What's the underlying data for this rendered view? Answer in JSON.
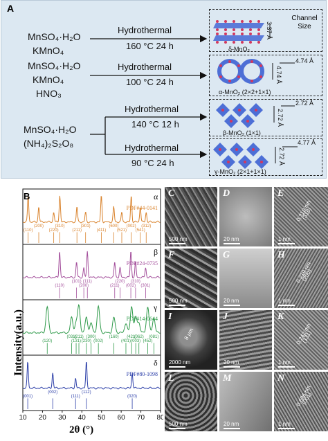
{
  "panelA": {
    "label": "A",
    "routes": [
      {
        "reagents": [
          "MnSO₄·H₂O",
          "KMnO₄"
        ],
        "method": "Hydrothermal",
        "condition": "160 °C 24 h",
        "product": "δ-MnO₂",
        "channel": "3.37 Å"
      },
      {
        "reagents": [
          "MnSO₄·H₂O",
          "KMnO₄",
          "HNO₃"
        ],
        "method": "Hydrothermal",
        "condition": "100 °C 24 h",
        "product": "α-MnO₂ (2×2+1×1)",
        "channel": "4.74 Å",
        "channel2": "4.74 Å"
      },
      {
        "reagents": [
          "MnSO₄·H₂O",
          "(NH₄)₂S₂O₈"
        ],
        "method": "Hydrothermal",
        "condition": "140 °C 12 h",
        "product": "β-MnO₂ (1×1)",
        "channel": "2.72 Å",
        "channel2": "2.72 Å"
      },
      {
        "method": "Hydrothermal",
        "condition": "90 °C 24 h",
        "product": "γ-MnO₂ (2×1+1×1)",
        "channel": "4.77 Å",
        "channel2": "2.72 Å"
      }
    ],
    "channel_size_label": "Channel Size"
  },
  "panelB": {
    "label": "B",
    "ylabel": "Intensity(a.u.)",
    "xlabel": "2θ (°)",
    "xticks": [
      "10",
      "20",
      "30",
      "40",
      "50",
      "60",
      "70",
      "80"
    ],
    "traces": [
      {
        "phase": "α",
        "pdf": "PDF#44-0141",
        "color": "#d9822b",
        "peaks": [
          [
            "(110)",
            12.7
          ],
          [
            "(200)",
            18.1
          ],
          [
            "(220)",
            25.7
          ],
          [
            "(310)",
            28.8
          ],
          [
            "(211)",
            37.5
          ],
          [
            "(301)",
            41.9
          ],
          [
            "(411)",
            49.9
          ],
          [
            "(600)",
            56.2
          ],
          [
            "(521)",
            60.3
          ],
          [
            "(002)",
            65.1
          ],
          [
            "(541)",
            69.7
          ],
          [
            "(312)",
            72.7
          ]
        ]
      },
      {
        "phase": "β",
        "pdf": "PDF#24-0735",
        "color": "#a34e9b",
        "peaks": [
          [
            "(110)",
            28.7
          ],
          [
            "(101)",
            37.3
          ],
          [
            "(200)",
            41.0
          ],
          [
            "(111)",
            42.8
          ],
          [
            "(211)",
            56.7
          ],
          [
            "(220)",
            59.4
          ],
          [
            "(002)",
            64.9
          ],
          [
            "(310)",
            67.3
          ],
          [
            "(301)",
            72.4
          ]
        ]
      },
      {
        "phase": "γ",
        "pdf": "PDF#14-0644",
        "color": "#2f9a4a",
        "peaks": [
          [
            "(120)",
            22.4
          ],
          [
            "(031)",
            34.8
          ],
          [
            "(131)",
            37.1
          ],
          [
            "(211)",
            38.5
          ],
          [
            "(230)",
            42.3
          ],
          [
            "(300)",
            44.7
          ],
          [
            "(002)",
            48.4
          ],
          [
            "(160)",
            56.3
          ],
          [
            "(401)",
            62.4
          ],
          [
            "(421)",
            65.3
          ],
          [
            "(003)",
            67.4
          ],
          [
            "(062)",
            69.0
          ],
          [
            "(452)",
            73.5
          ],
          [
            "(081)",
            76.6
          ]
        ]
      },
      {
        "phase": "δ",
        "pdf": "PDF#80-1098",
        "color": "#2b3ea8",
        "peaks": [
          [
            "(001)",
            12.5
          ],
          [
            "(002)",
            25.2
          ],
          [
            "(111)",
            36.8
          ],
          [
            "(112)",
            42.3
          ],
          [
            "(020)",
            65.6
          ]
        ]
      }
    ]
  },
  "tem": {
    "rows": [
      {
        "images": [
          {
            "label": "C",
            "scale": "500 nm"
          },
          {
            "label": "D",
            "scale": "20 nm"
          },
          {
            "label": "E",
            "scale": "1 nm",
            "annot": "0.310 nm",
            "hkl": "(310)"
          }
        ]
      },
      {
        "images": [
          {
            "label": "F",
            "scale": "500 nm"
          },
          {
            "label": "G",
            "scale": "20 nm"
          },
          {
            "label": "H",
            "scale": "1 nm",
            "annot": "0.219 nm",
            "hkl": "(200)"
          }
        ]
      },
      {
        "images": [
          {
            "label": "I",
            "scale": "2000 nm",
            "annot": "8 μm"
          },
          {
            "label": "J",
            "scale": "20 nm"
          },
          {
            "label": "K",
            "scale": "1 nm",
            "annot": "0.242 nm",
            "hkl": "(131)"
          }
        ]
      },
      {
        "images": [
          {
            "label": "L",
            "scale": "500 nm"
          },
          {
            "label": "M",
            "scale": "20 nm"
          },
          {
            "label": "N",
            "scale": "1 nm",
            "annot": "0.696 nm",
            "hkl": "(001)"
          }
        ]
      }
    ]
  },
  "colors": {
    "panel_bg": "#dce8f2",
    "alpha": "#d9822b",
    "beta": "#a34e9b",
    "gamma": "#2f9a4a",
    "delta": "#2b3ea8",
    "crystal_blue": "#4d6fd6",
    "crystal_red": "#d2385f"
  }
}
